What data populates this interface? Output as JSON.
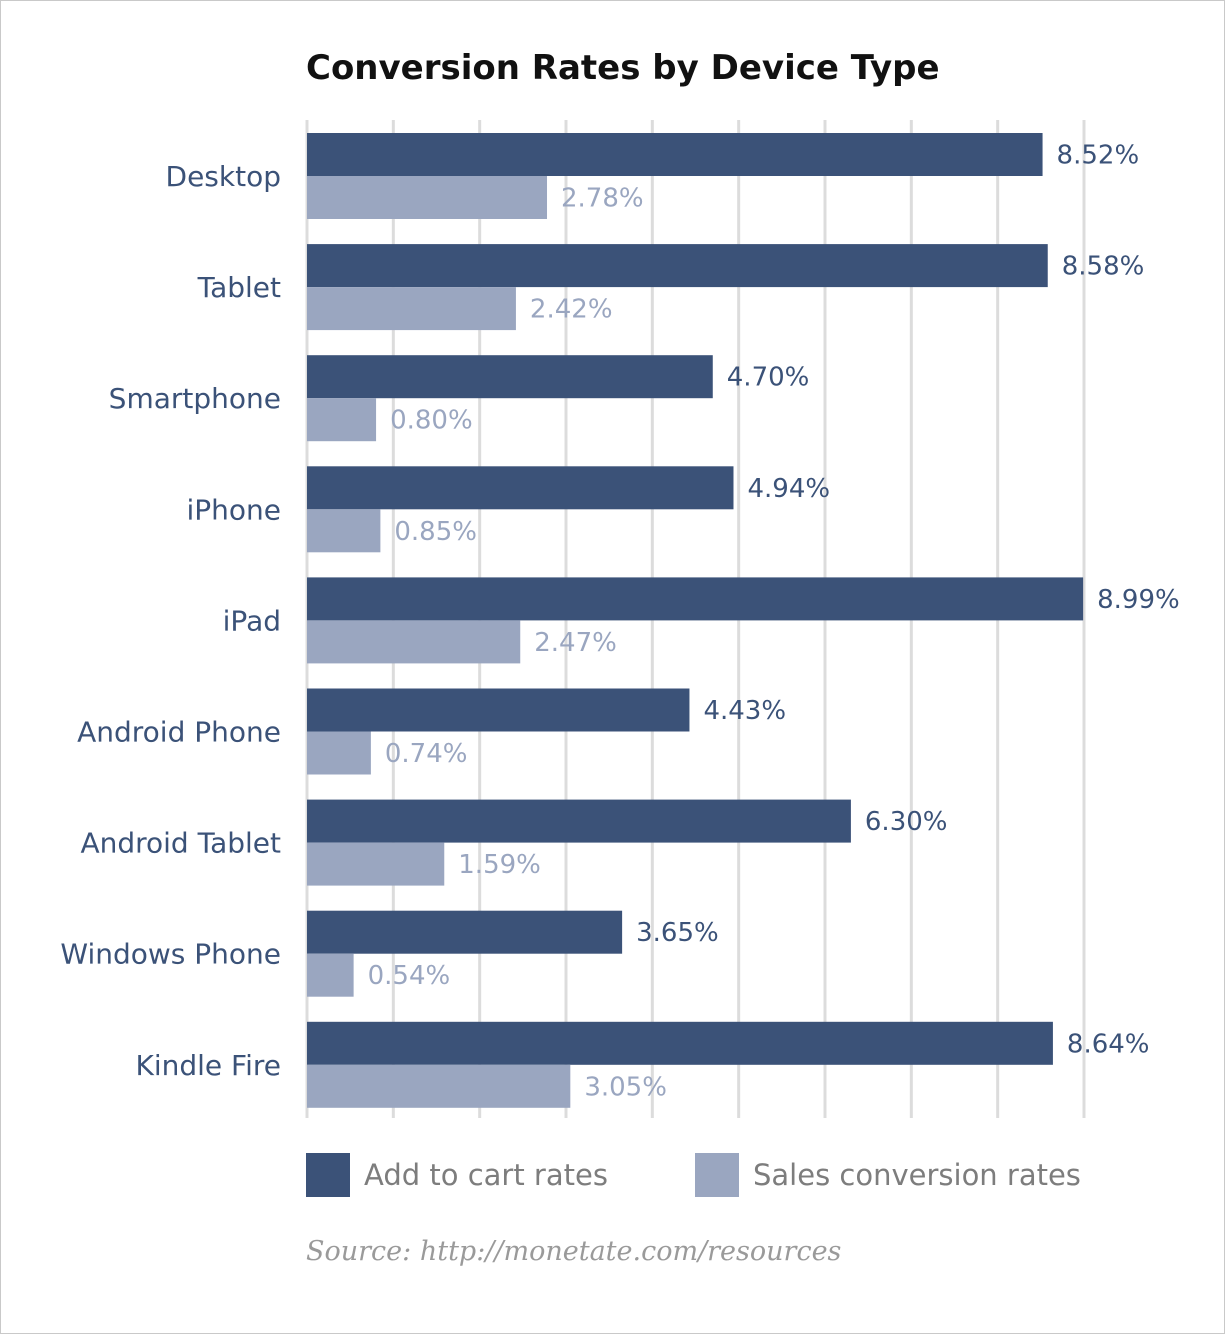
{
  "chart_data": {
    "type": "bar",
    "orientation": "horizontal",
    "title": "Conversion Rates by Device Type",
    "categories": [
      "Desktop",
      "Tablet",
      "Smartphone",
      "iPhone",
      "iPad",
      "Android Phone",
      "Android Tablet",
      "Windows Phone",
      "Kindle Fire"
    ],
    "series": [
      {
        "name": "Add to cart rates",
        "color": "#3b5278",
        "values": [
          8.52,
          8.58,
          4.7,
          4.94,
          8.99,
          4.43,
          6.3,
          3.65,
          8.64
        ],
        "labels": [
          "8.52%",
          "8.58%",
          "4.70%",
          "4.94%",
          "8.99%",
          "4.43%",
          "6.30%",
          "3.65%",
          "8.64%"
        ]
      },
      {
        "name": "Sales conversion rates",
        "color": "#9aa6c0",
        "values": [
          2.78,
          2.42,
          0.8,
          0.85,
          2.47,
          0.74,
          1.59,
          0.54,
          3.05
        ],
        "labels": [
          "2.78%",
          "2.42%",
          "0.80%",
          "0.85%",
          "2.47%",
          "0.74%",
          "1.59%",
          "0.54%",
          "3.05%"
        ]
      }
    ],
    "xlim": [
      0,
      9
    ],
    "grid": true,
    "legend": "bottom",
    "source": "Source: http://monetate.com/resources"
  }
}
